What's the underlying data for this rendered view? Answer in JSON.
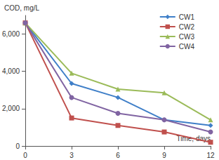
{
  "chart_data": {
    "type": "line",
    "x_label": "Time, days",
    "y_label": "COD, mg/L",
    "x": [
      0,
      3,
      6,
      9,
      12
    ],
    "xlim": [
      0,
      12
    ],
    "xticks": [
      0,
      3,
      6,
      9,
      12
    ],
    "ylim": [
      0,
      7000
    ],
    "yticks": [
      0,
      2000,
      4000,
      6000
    ],
    "grid": false,
    "legend": "upper right",
    "series": [
      {
        "name": "CW1",
        "color": "#3f7fc8",
        "marker": "diamond",
        "values": [
          6600,
          3350,
          2600,
          1400,
          1100
        ]
      },
      {
        "name": "CW2",
        "color": "#c0504d",
        "marker": "square",
        "values": [
          6600,
          1500,
          1100,
          750,
          200
        ]
      },
      {
        "name": "CW3",
        "color": "#9bbb59",
        "marker": "triangle",
        "values": [
          6600,
          3900,
          3050,
          2850,
          1400
        ]
      },
      {
        "name": "CW4",
        "color": "#8064a2",
        "marker": "circle",
        "values": [
          6600,
          2600,
          1750,
          1400,
          750
        ]
      }
    ]
  }
}
